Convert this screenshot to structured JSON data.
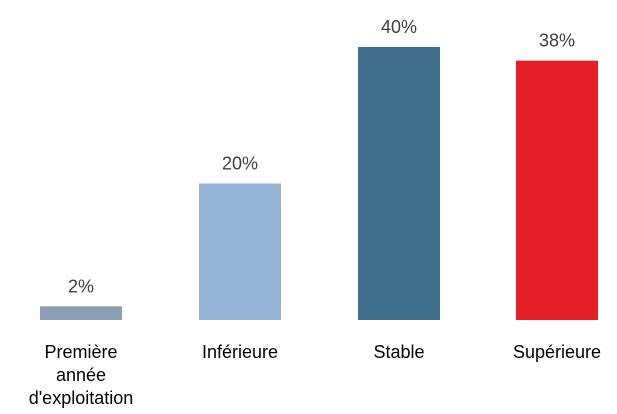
{
  "chart_data": {
    "type": "bar",
    "categories": [
      [
        "Première",
        "année",
        "d'exploitation"
      ],
      [
        "Inférieure"
      ],
      [
        "Stable"
      ],
      [
        "Supérieure"
      ]
    ],
    "values": [
      2,
      20,
      40,
      38
    ],
    "value_labels": [
      "2%",
      "20%",
      "40%",
      "38%"
    ],
    "colors": [
      "#8a9fb1",
      "#95b3d7",
      "#41708f",
      "#e31e26"
    ],
    "ylim": [
      0,
      40
    ],
    "grid": false,
    "legend": "none"
  }
}
